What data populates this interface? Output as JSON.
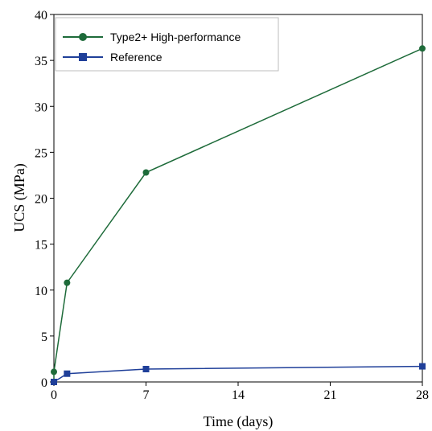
{
  "chart_data": {
    "type": "line",
    "xlabel": "Time (days)",
    "ylabel": "UCS (MPa)",
    "xlim": [
      0,
      28
    ],
    "ylim": [
      0,
      40
    ],
    "xticks": [
      0,
      7,
      14,
      21,
      28
    ],
    "yticks": [
      0,
      5,
      10,
      15,
      20,
      25,
      30,
      35,
      40
    ],
    "grid": false,
    "legend_position": "top-left",
    "series": [
      {
        "name": "Type2+ High-performance",
        "color": "#1e6b3a",
        "marker": "circle",
        "x": [
          0,
          0,
          1,
          7,
          28
        ],
        "y": [
          0,
          1.1,
          10.8,
          22.8,
          36.3
        ]
      },
      {
        "name": "Reference",
        "color": "#1f3f99",
        "marker": "square",
        "x": [
          0,
          1,
          7,
          28
        ],
        "y": [
          0,
          0.9,
          1.4,
          1.7
        ]
      }
    ]
  }
}
